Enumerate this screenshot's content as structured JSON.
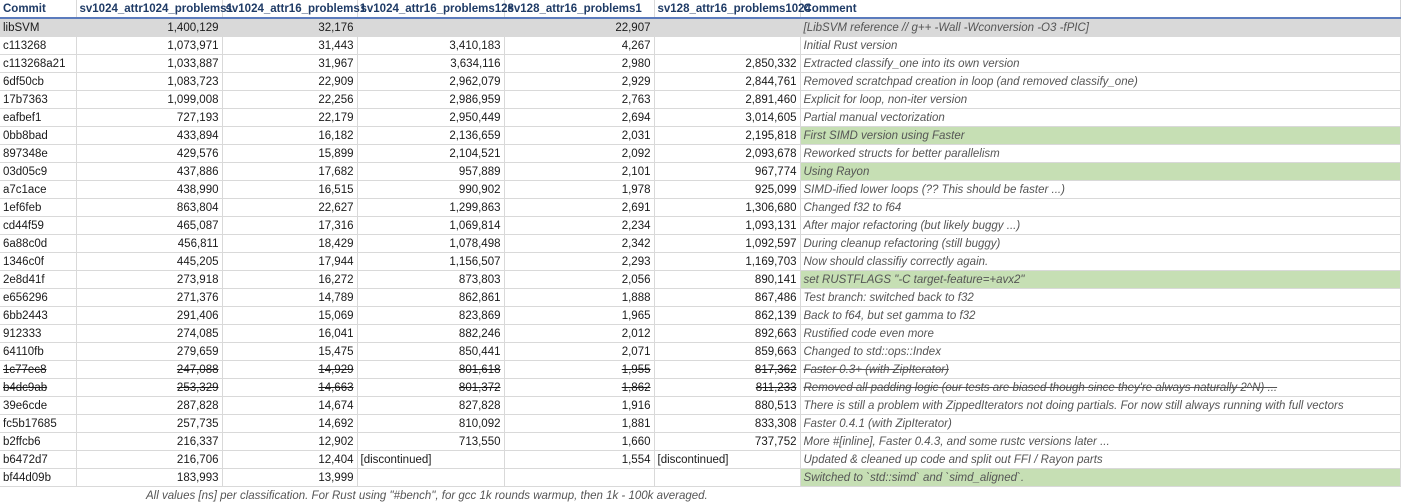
{
  "headers": [
    "Commit",
    "sv1024_attr1024_problems1",
    "sv1024_attr16_problems1",
    "sv1024_attr16_problems128",
    "sv128_attr16_problems1",
    "sv128_attr16_problems1024",
    "Comment"
  ],
  "rows": [
    {
      "commit": "libSVM",
      "v1": "1,400,129",
      "v2": "32,176",
      "v3": "",
      "v4": "22,907",
      "v5": "",
      "comment": "[LibSVM reference // g++ -Wall -Wconversion -O3 -fPIC]",
      "style": "ref"
    },
    {
      "commit": "c113268",
      "v1": "1,073,971",
      "v2": "31,443",
      "v3": "3,410,183",
      "v4": "4,267",
      "v5": "",
      "comment": "Initial Rust version",
      "style": ""
    },
    {
      "commit": "c113268a21",
      "v1": "1,033,887",
      "v2": "31,967",
      "v3": "3,634,116",
      "v4": "2,980",
      "v5": "2,850,332",
      "comment": "Extracted classify_one into its own version",
      "style": ""
    },
    {
      "commit": "6df50cb",
      "v1": "1,083,723",
      "v2": "22,909",
      "v3": "2,962,079",
      "v4": "2,929",
      "v5": "2,844,761",
      "comment": "Removed scratchpad creation in loop (and removed classify_one)",
      "style": ""
    },
    {
      "commit": "17b7363",
      "v1": "1,099,008",
      "v2": "22,256",
      "v3": "2,986,959",
      "v4": "2,763",
      "v5": "2,891,460",
      "comment": "Explicit for loop, non-iter version",
      "style": ""
    },
    {
      "commit": "eafbef1",
      "v1": "727,193",
      "v2": "22,179",
      "v3": "2,950,449",
      "v4": "2,694",
      "v5": "3,014,605",
      "comment": "Partial manual vectorization",
      "style": ""
    },
    {
      "commit": "0bb8bad",
      "v1": "433,894",
      "v2": "16,182",
      "v3": "2,136,659",
      "v4": "2,031",
      "v5": "2,195,818",
      "comment": "First SIMD version using Faster",
      "style": "green"
    },
    {
      "commit": "897348e",
      "v1": "429,576",
      "v2": "15,899",
      "v3": "2,104,521",
      "v4": "2,092",
      "v5": "2,093,678",
      "comment": "Reworked structs for better parallelism",
      "style": ""
    },
    {
      "commit": "03d05c9",
      "v1": "437,886",
      "v2": "17,682",
      "v3": "957,889",
      "v4": "2,101",
      "v5": "967,774",
      "comment": "Using Rayon",
      "style": "green"
    },
    {
      "commit": "a7c1ace",
      "v1": "438,990",
      "v2": "16,515",
      "v3": "990,902",
      "v4": "1,978",
      "v5": "925,099",
      "comment": "SIMD-ified lower loops (?? This should be faster ...)",
      "style": ""
    },
    {
      "commit": "1ef6feb",
      "v1": "863,804",
      "v2": "22,627",
      "v3": "1,299,863",
      "v4": "2,691",
      "v5": "1,306,680",
      "comment": "Changed f32 to f64",
      "style": ""
    },
    {
      "commit": "cd44f59",
      "v1": "465,087",
      "v2": "17,316",
      "v3": "1,069,814",
      "v4": "2,234",
      "v5": "1,093,131",
      "comment": "After major refactoring (but likely buggy ...)",
      "style": ""
    },
    {
      "commit": "6a88c0d",
      "v1": "456,811",
      "v2": "18,429",
      "v3": "1,078,498",
      "v4": "2,342",
      "v5": "1,092,597",
      "comment": "During cleanup refactoring (still buggy)",
      "style": ""
    },
    {
      "commit": "1346c0f",
      "v1": "445,205",
      "v2": "17,944",
      "v3": "1,156,507",
      "v4": "2,293",
      "v5": "1,169,703",
      "comment": "Now should classifiy correctly again.",
      "style": ""
    },
    {
      "commit": "2e8d41f",
      "v1": "273,918",
      "v2": "16,272",
      "v3": "873,803",
      "v4": "2,056",
      "v5": "890,141",
      "comment": "set RUSTFLAGS \"-C target-feature=+avx2\"",
      "style": "green"
    },
    {
      "commit": "e656296",
      "v1": "271,376",
      "v2": "14,789",
      "v3": "862,861",
      "v4": "1,888",
      "v5": "867,486",
      "comment": "Test branch: switched back to f32",
      "style": ""
    },
    {
      "commit": "6bb2443",
      "v1": "291,406",
      "v2": "15,069",
      "v3": "823,869",
      "v4": "1,965",
      "v5": "862,139",
      "comment": "Back to f64, but set gamma to f32",
      "style": ""
    },
    {
      "commit": "912333",
      "v1": "274,085",
      "v2": "16,041",
      "v3": "882,246",
      "v4": "2,012",
      "v5": "892,663",
      "comment": "Rustified code even more",
      "style": ""
    },
    {
      "commit": "64110fb",
      "v1": "279,659",
      "v2": "15,475",
      "v3": "850,441",
      "v4": "2,071",
      "v5": "859,663",
      "comment": "Changed to std::ops::Index",
      "style": ""
    },
    {
      "commit": "1c77ec8",
      "v1": "247,088",
      "v2": "14,929",
      "v3": "801,618",
      "v4": "1,955",
      "v5": "817,362",
      "comment": "Faster 0.3+ (with ZipIterator)",
      "style": "strike"
    },
    {
      "commit": "b4dc9ab",
      "v1": "253,329",
      "v2": "14,663",
      "v3": "801,372",
      "v4": "1,862",
      "v5": "811,233",
      "comment": "Removed all padding logic (our tests are biased though since they're always naturally 2^N) ...",
      "style": "strike"
    },
    {
      "commit": "39e6cde",
      "v1": "287,828",
      "v2": "14,674",
      "v3": "827,828",
      "v4": "1,916",
      "v5": "880,513",
      "comment": "There is still a problem with ZippedIterators not doing partials. For now still always running with full vectors",
      "style": ""
    },
    {
      "commit": "fc5b17685",
      "v1": "257,735",
      "v2": "14,692",
      "v3": "810,092",
      "v4": "1,881",
      "v5": "833,308",
      "comment": "Faster 0.4.1 (with ZipIterator)",
      "style": ""
    },
    {
      "commit": "b2ffcb6",
      "v1": "216,337",
      "v2": "12,902",
      "v3": "713,550",
      "v4": "1,660",
      "v5": "737,752",
      "comment": "More #[inline], Faster 0.4.3, and some rustc versions later ...",
      "style": ""
    },
    {
      "commit": "b6472d7",
      "v1": "216,706",
      "v2": "12,404",
      "v3": "[discontinued]",
      "v4": "1,554",
      "v5": "[discontinued]",
      "comment": "Updated & cleaned up code and split out FFI / Rayon parts",
      "style": ""
    },
    {
      "commit": "bf44d09b",
      "v1": "183,993",
      "v2": "13,999",
      "v3": "",
      "v4": "",
      "v5": "",
      "comment": "Switched to `std::simd` and `simd_aligned`.",
      "style": "green"
    }
  ],
  "footer": "All values [ns] per classification. For Rust using \"#bench\", for gcc 1k rounds warmup, then 1k - 100k averaged."
}
